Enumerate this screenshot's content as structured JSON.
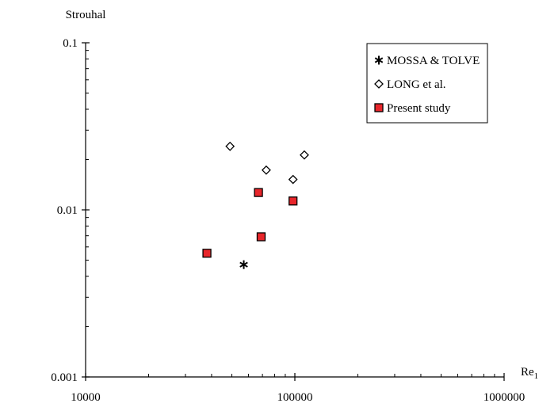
{
  "chart_data": {
    "type": "scatter",
    "title": "",
    "ylabel": "Strouhal",
    "xlabel_base": "Re",
    "xlabel_subscript": "1",
    "x_scale": "log",
    "y_scale": "log",
    "xlim": [
      10000,
      1000000
    ],
    "ylim": [
      0.001,
      0.1
    ],
    "x_ticks": [
      {
        "value": 10000,
        "label": "10000"
      },
      {
        "value": 100000,
        "label": "100000"
      },
      {
        "value": 1000000,
        "label": "1000000"
      }
    ],
    "y_ticks": [
      {
        "value": 0.001,
        "label": "0.001"
      },
      {
        "value": 0.01,
        "label": "0.01"
      },
      {
        "value": 0.1,
        "label": "0.1"
      }
    ],
    "grid": false,
    "legend_position": "top-right",
    "series": [
      {
        "name": "MOSSA & TOLVE",
        "marker": "asterisk",
        "color": "#000000",
        "points": [
          [
            57000,
            0.0047
          ]
        ]
      },
      {
        "name": "LONG et al.",
        "marker": "diamond",
        "color": "#000000",
        "points": [
          [
            49000,
            0.024
          ],
          [
            73000,
            0.0173
          ],
          [
            98000,
            0.0152
          ],
          [
            111000,
            0.0213
          ]
        ]
      },
      {
        "name": "Present study",
        "marker": "square",
        "color": "#e8262b",
        "points": [
          [
            38000,
            0.0055
          ],
          [
            67000,
            0.0127
          ],
          [
            69000,
            0.0069
          ],
          [
            98000,
            0.0113
          ]
        ]
      }
    ]
  }
}
